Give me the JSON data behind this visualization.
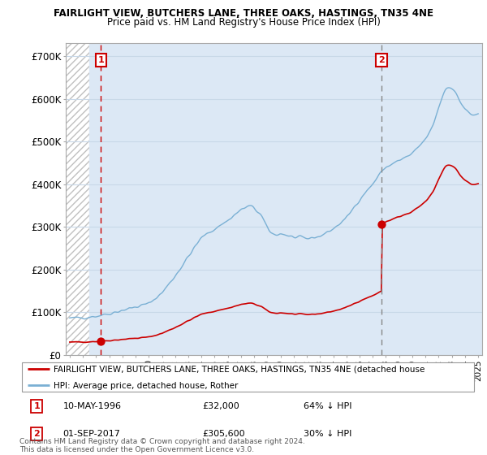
{
  "title": "FAIRLIGHT VIEW, BUTCHERS LANE, THREE OAKS, HASTINGS, TN35 4NE",
  "subtitle": "Price paid vs. HM Land Registry's House Price Index (HPI)",
  "ylabel_ticks": [
    "£0",
    "£100K",
    "£200K",
    "£300K",
    "£400K",
    "£500K",
    "£600K",
    "£700K"
  ],
  "ytick_vals": [
    0,
    100000,
    200000,
    300000,
    400000,
    500000,
    600000,
    700000
  ],
  "ylim": [
    0,
    730000
  ],
  "xlim_start": 1993.7,
  "xlim_end": 2025.3,
  "sale1_x": 1996.36,
  "sale1_y": 32000,
  "sale2_x": 2017.67,
  "sale2_y": 305600,
  "sale1_label": "1",
  "sale2_label": "2",
  "sale_color": "#cc0000",
  "hpi_color": "#7ab0d4",
  "vline1_color": "#cc0000",
  "vline2_color": "#888888",
  "legend_sale_text": "FAIRLIGHT VIEW, BUTCHERS LANE, THREE OAKS, HASTINGS, TN35 4NE (detached house",
  "legend_hpi_text": "HPI: Average price, detached house, Rother",
  "footnote": "Contains HM Land Registry data © Crown copyright and database right 2024.\nThis data is licensed under the Open Government Licence v3.0.",
  "bg_hatch_end": 1995.5,
  "hpi_seed": 42,
  "red_seed": 7
}
